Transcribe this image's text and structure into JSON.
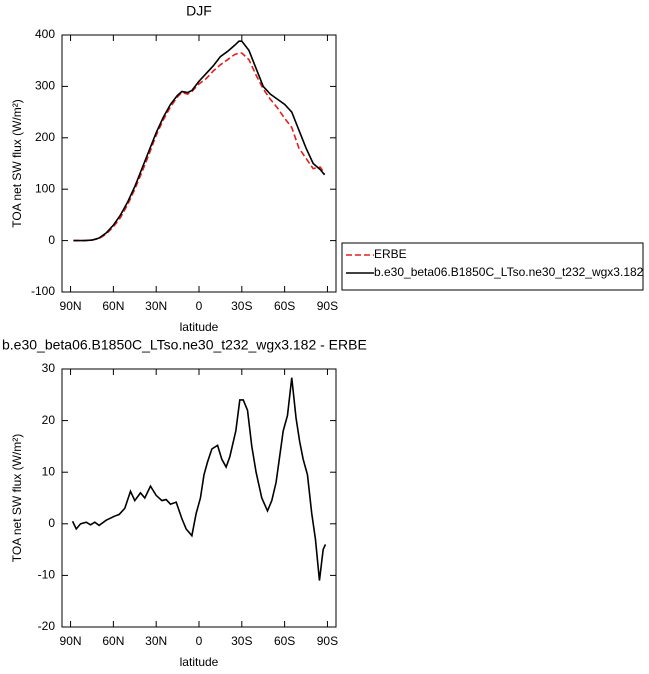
{
  "chart_data": [
    {
      "type": "line",
      "title": "DJF",
      "xlabel": "latitude",
      "ylabel": "TOA net SW flux (W/m²)",
      "xlim": [
        96,
        -96
      ],
      "ylim": [
        -100,
        400
      ],
      "xticks": [
        {
          "value": 90,
          "label": "90N"
        },
        {
          "value": 60,
          "label": "60N"
        },
        {
          "value": 30,
          "label": "30N"
        },
        0,
        {
          "value": -30,
          "label": "30S"
        },
        {
          "value": -60,
          "label": "60S"
        },
        {
          "value": -90,
          "label": "90S"
        }
      ],
      "yticks": [
        -100,
        0,
        100,
        200,
        300,
        400
      ],
      "legend": "right",
      "series": [
        {
          "name": "ERBE",
          "color": "#e0201e",
          "dash": true,
          "x": [
            88,
            80,
            75,
            70,
            65,
            60,
            55,
            50,
            45,
            40,
            35,
            30,
            25,
            20,
            15,
            12,
            8,
            5,
            0,
            -5,
            -10,
            -15,
            -20,
            -25,
            -28,
            -30,
            -35,
            -40,
            -45,
            -50,
            -55,
            -60,
            -65,
            -70,
            -75,
            -80,
            -85,
            -88
          ],
          "values": [
            0,
            0,
            1,
            4,
            13,
            27,
            45,
            70,
            100,
            133,
            168,
            205,
            235,
            260,
            280,
            288,
            285,
            290,
            305,
            315,
            330,
            342,
            352,
            362,
            365,
            365,
            352,
            322,
            295,
            275,
            258,
            238,
            220,
            180,
            160,
            140,
            143,
            130
          ]
        },
        {
          "name": "b.e30_beta06.B1850C_LTso.ne30_t232_wgx3.182",
          "color": "#000000",
          "dash": false,
          "x": [
            88,
            80,
            75,
            70,
            65,
            60,
            55,
            50,
            45,
            40,
            35,
            30,
            25,
            20,
            15,
            12,
            8,
            5,
            0,
            -5,
            -10,
            -15,
            -20,
            -25,
            -28,
            -30,
            -35,
            -40,
            -45,
            -50,
            -55,
            -60,
            -65,
            -70,
            -75,
            -80,
            -85,
            -88
          ],
          "values": [
            0,
            0,
            1,
            5,
            15,
            30,
            50,
            75,
            105,
            140,
            175,
            210,
            240,
            265,
            283,
            290,
            288,
            292,
            310,
            325,
            340,
            358,
            368,
            380,
            388,
            388,
            370,
            335,
            300,
            285,
            275,
            265,
            250,
            215,
            180,
            150,
            138,
            128
          ]
        }
      ]
    },
    {
      "type": "line",
      "title": "b.e30_beta06.B1850C_LTso.ne30_t232_wgx3.182 - ERBE",
      "xlabel": "latitude",
      "ylabel": "TOA net SW flux (W/m²)",
      "xlim": [
        96,
        -96
      ],
      "ylim": [
        -20,
        30
      ],
      "xticks": [
        {
          "value": 90,
          "label": "90N"
        },
        {
          "value": 60,
          "label": "60N"
        },
        {
          "value": 30,
          "label": "30N"
        },
        0,
        {
          "value": -30,
          "label": "30S"
        },
        {
          "value": -60,
          "label": "60S"
        },
        {
          "value": -90,
          "label": "90S"
        }
      ],
      "yticks": [
        -20,
        -10,
        0,
        10,
        20,
        30
      ],
      "series": [
        {
          "color": "#000000",
          "x": [
            88.6,
            86,
            83,
            79,
            76,
            73,
            70,
            65,
            59,
            56,
            52,
            48,
            45,
            41,
            38,
            34,
            30,
            26,
            23,
            20,
            16,
            12,
            9,
            5,
            2,
            -1,
            -3.5,
            -6,
            -9,
            -13,
            -16,
            -19,
            -21.6,
            -25.8,
            -28.6,
            -31,
            -34,
            -37,
            -40,
            -44,
            -48,
            -51,
            -54,
            -56.5,
            -59,
            -62,
            -65,
            -68,
            -70.5,
            -73,
            -76,
            -79,
            -81.6,
            -84.4,
            -87,
            -88.6
          ],
          "values": [
            0.5,
            -1,
            0,
            0.3,
            -0.2,
            0.3,
            -0.3,
            0.7,
            1.5,
            1.8,
            3,
            6.3,
            4.5,
            6,
            5,
            7.3,
            5.5,
            4.5,
            4.7,
            3.8,
            4.2,
            1,
            -1,
            -2.3,
            2,
            5,
            9.5,
            12,
            14.5,
            15.2,
            12.5,
            11,
            13,
            18,
            24,
            24,
            22,
            15,
            10,
            5,
            2.5,
            4.5,
            8,
            13,
            18,
            21,
            28.3,
            20.5,
            16,
            12.5,
            9.5,
            2,
            -3,
            -11,
            -5,
            -4
          ]
        }
      ]
    }
  ]
}
